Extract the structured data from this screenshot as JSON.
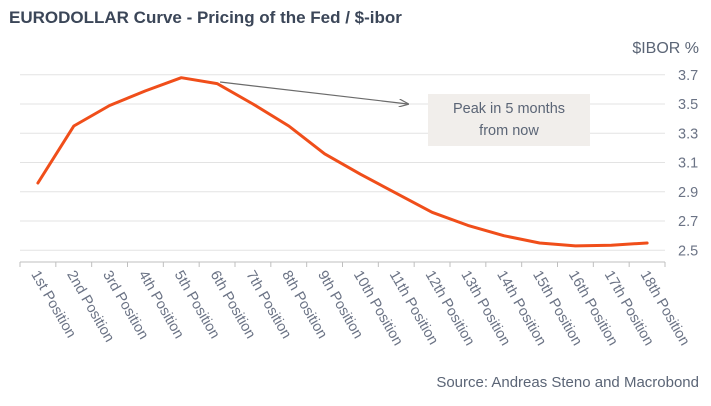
{
  "chart_data": {
    "type": "line",
    "title": "EURODOLLAR Curve - Pricing of the Fed / $-ibor",
    "ylabel": "$IBOR %",
    "source": "Source: Andreas Steno and Macrobond",
    "categories": [
      "1st Position",
      "2nd Position",
      "3rd Position",
      "4th Position",
      "5th Position",
      "6th Position",
      "7th Position",
      "8th Position",
      "9th Position",
      "10th Position",
      "11th Position",
      "12th Position",
      "13th Position",
      "14th Position",
      "15th Position",
      "16th Position",
      "17th Position",
      "18th Position"
    ],
    "series": [
      {
        "values": [
          2.96,
          3.35,
          3.49,
          3.59,
          3.68,
          3.64,
          3.5,
          3.35,
          3.16,
          3.02,
          2.89,
          2.76,
          2.67,
          2.6,
          2.55,
          2.53,
          2.535,
          2.55
        ]
      }
    ],
    "yticks": [
      2.5,
      2.7,
      2.9,
      3.1,
      3.3,
      3.5,
      3.7
    ],
    "ylim": [
      2.42,
      3.76
    ],
    "grid": true,
    "line_color": "#f04e1a",
    "annotation": {
      "lines": [
        "Peak in 5 months",
        "from now"
      ],
      "target_category": "5th Position"
    }
  }
}
